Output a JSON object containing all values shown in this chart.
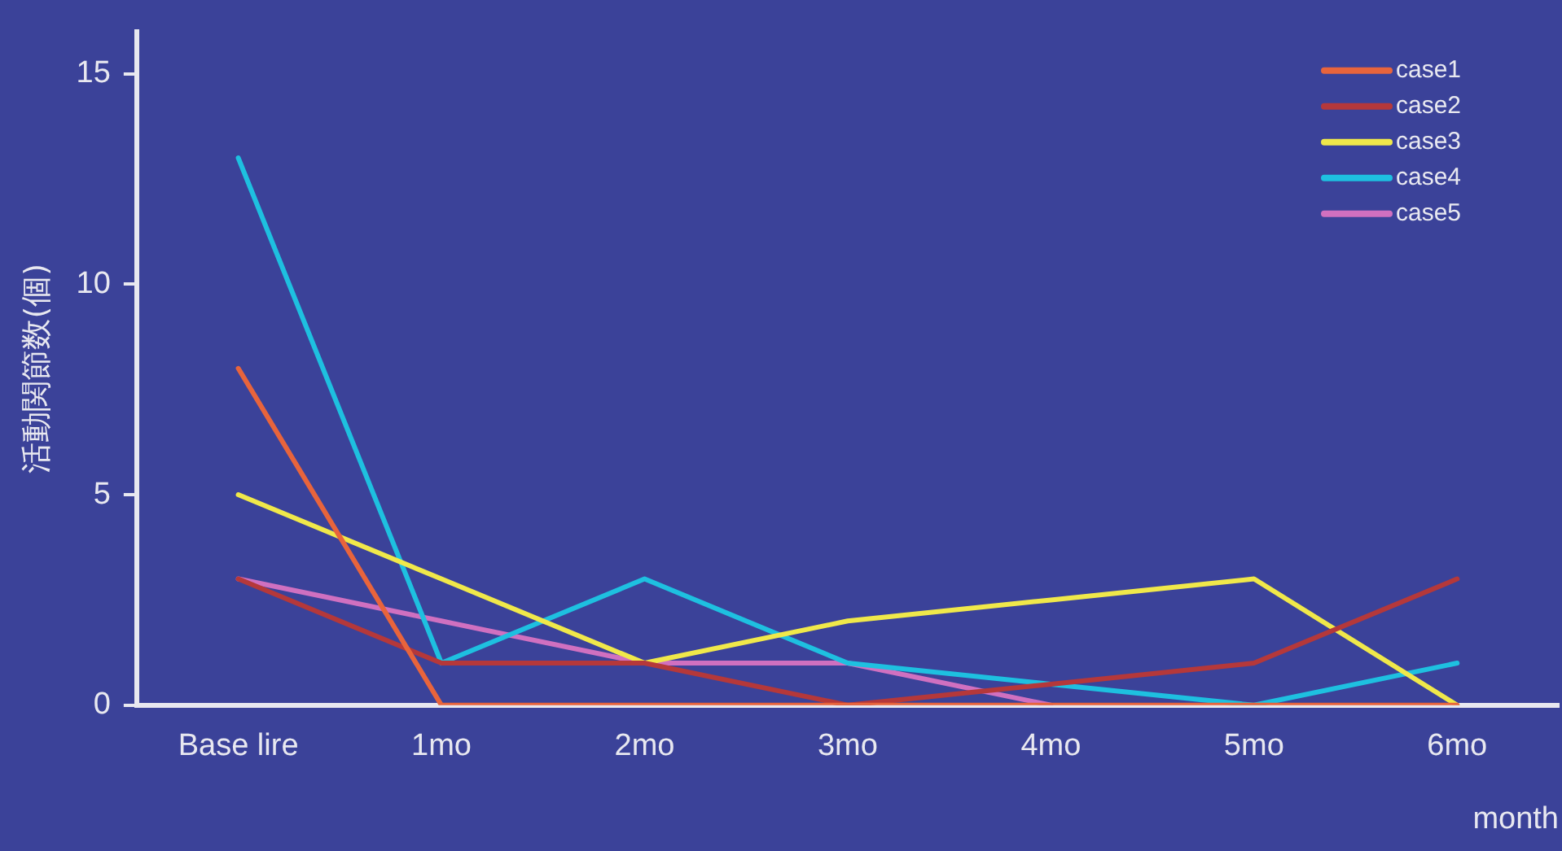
{
  "chart_data": {
    "type": "line",
    "xlabel": "month",
    "ylabel": "活動関節数(個)",
    "categories": [
      "Base lire",
      "1mo",
      "2mo",
      "3mo",
      "4mo",
      "5mo",
      "6mo"
    ],
    "series": [
      {
        "name": "case1",
        "color": "#e8643c",
        "values": [
          8,
          0,
          0,
          0,
          0,
          0,
          0
        ]
      },
      {
        "name": "case2",
        "color": "#b5383a",
        "values": [
          3,
          1,
          1,
          0,
          0.5,
          1,
          3
        ]
      },
      {
        "name": "case3",
        "color": "#f0e84a",
        "values": [
          5,
          3,
          1,
          2,
          2.5,
          3,
          0
        ]
      },
      {
        "name": "case4",
        "color": "#1ec0e0",
        "values": [
          13,
          1,
          3,
          1,
          0.5,
          0,
          1
        ]
      },
      {
        "name": "case5",
        "color": "#d070c0",
        "values": [
          3,
          2,
          1,
          1,
          0,
          null,
          null
        ]
      }
    ],
    "ylim": [
      0,
      16
    ],
    "yticks": [
      0,
      5,
      10,
      15
    ],
    "grid": false,
    "legend": "top right",
    "marker": "none",
    "line_style": "solid"
  }
}
